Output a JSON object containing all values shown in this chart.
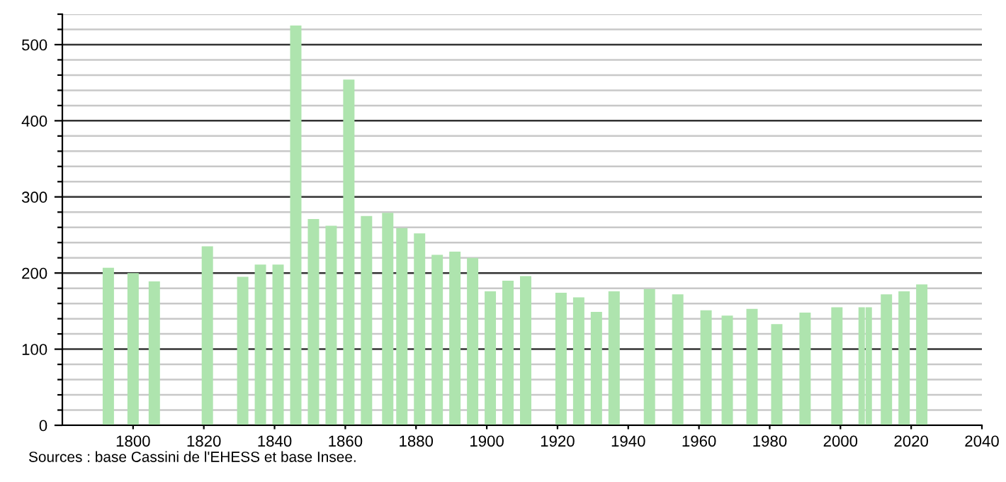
{
  "chart_data": {
    "type": "bar",
    "color": "#aee4ae",
    "x": [
      1793,
      1800,
      1806,
      1821,
      1831,
      1836,
      1841,
      1846,
      1851,
      1856,
      1861,
      1866,
      1872,
      1876,
      1881,
      1886,
      1891,
      1896,
      1901,
      1906,
      1911,
      1921,
      1926,
      1931,
      1936,
      1946,
      1954,
      1962,
      1968,
      1975,
      1982,
      1990,
      1999,
      2006,
      2008,
      2013,
      2018,
      2023
    ],
    "values": [
      207,
      200,
      189,
      235,
      195,
      211,
      211,
      525,
      271,
      262,
      454,
      275,
      279,
      259,
      252,
      224,
      228,
      220,
      176,
      190,
      196,
      174,
      168,
      149,
      176,
      179,
      172,
      151,
      144,
      153,
      133,
      148,
      155,
      155,
      155,
      172,
      176,
      185
    ],
    "xlim": [
      1780,
      2040
    ],
    "xticks": [
      1800,
      1820,
      1840,
      1860,
      1880,
      1900,
      1920,
      1940,
      1960,
      1980,
      2000,
      2020,
      2040
    ],
    "ylim": [
      0,
      540
    ],
    "yticks": [
      0,
      {
        "value": 20,
        "label": null
      },
      {
        "value": 40,
        "label": null
      },
      {
        "value": 60,
        "label": null
      },
      {
        "value": 80,
        "label": null
      },
      100,
      {
        "value": 120,
        "label": null
      },
      {
        "value": 140,
        "label": null
      },
      {
        "value": 160,
        "label": null
      },
      {
        "value": 180,
        "label": null
      },
      200,
      {
        "value": 220,
        "label": null
      },
      {
        "value": 240,
        "label": null
      },
      {
        "value": 260,
        "label": null
      },
      {
        "value": 280,
        "label": null
      },
      300,
      {
        "value": 320,
        "label": null
      },
      {
        "value": 340,
        "label": null
      },
      {
        "value": 360,
        "label": null
      },
      {
        "value": 380,
        "label": null
      },
      400,
      {
        "value": 420,
        "label": null
      },
      {
        "value": 440,
        "label": null
      },
      {
        "value": 460,
        "label": null
      },
      {
        "value": 480,
        "label": null
      },
      500,
      {
        "value": 520,
        "label": null
      },
      {
        "value": 540,
        "label": null
      }
    ],
    "grid": "y",
    "annotations": [
      "Sources : base Cassini de l'EHESS et base Insee."
    ]
  }
}
